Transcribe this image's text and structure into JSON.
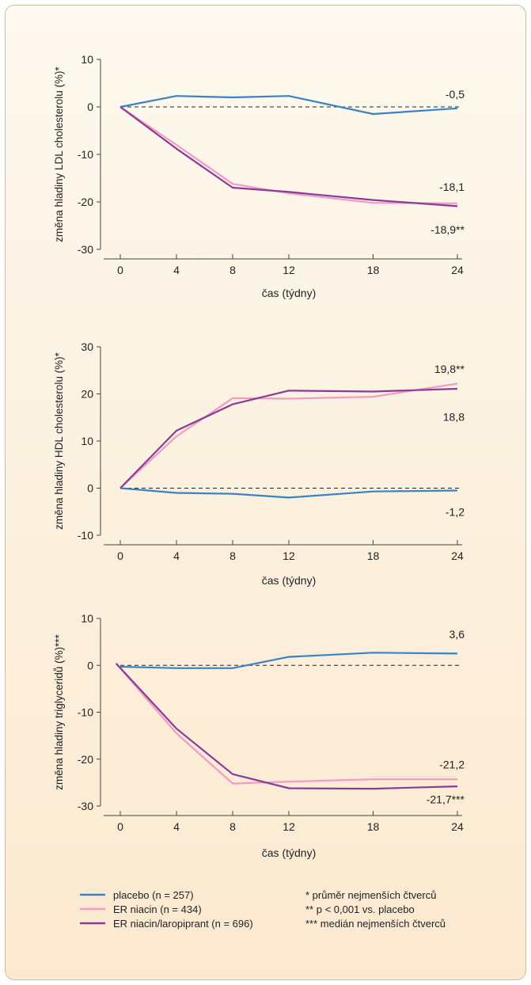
{
  "chart_data": [
    {
      "type": "line",
      "ylabel": "změna hladiny LDL cholesterolu (%)*",
      "xlabel": "čas (týdny)",
      "ylim": [
        -30,
        10
      ],
      "yticks": [
        10,
        0,
        -10,
        -20,
        -30
      ],
      "xticks": [
        0,
        4,
        8,
        12,
        18,
        24
      ],
      "xlim": [
        0,
        24
      ],
      "reference_line": 0,
      "series": [
        {
          "key": "placebo",
          "x": [
            0,
            4,
            8,
            12,
            18,
            24
          ],
          "y": [
            0,
            2.3,
            2.0,
            2.3,
            -1.5,
            -0.3
          ]
        },
        {
          "key": "er_niacin",
          "x": [
            0,
            4,
            8,
            12,
            18,
            24
          ],
          "y": [
            0,
            -8.0,
            -16.2,
            -18.2,
            -20.2,
            -20.3
          ]
        },
        {
          "key": "niacin_laropiprant",
          "x": [
            0,
            4,
            8,
            12,
            18,
            24
          ],
          "y": [
            0,
            -8.8,
            -17.0,
            -17.9,
            -19.6,
            -20.9
          ]
        }
      ],
      "end_labels": [
        {
          "text": "-0,5",
          "y": 2.7
        },
        {
          "text": "-18,1",
          "y": -16.8
        },
        {
          "text": "-18,9**",
          "y": -25.8
        }
      ]
    },
    {
      "type": "line",
      "ylabel": "změna hladiny HDL cholesterolu (%)*",
      "xlabel": "čas (týdny)",
      "ylim": [
        -10,
        30
      ],
      "yticks": [
        30,
        20,
        10,
        0,
        -10
      ],
      "xticks": [
        0,
        4,
        8,
        12,
        18,
        24
      ],
      "xlim": [
        0,
        24
      ],
      "reference_line": 0,
      "series": [
        {
          "key": "placebo",
          "x": [
            0,
            4,
            8,
            12,
            18,
            24
          ],
          "y": [
            0,
            -1.0,
            -1.2,
            -2.0,
            -0.7,
            -0.5
          ]
        },
        {
          "key": "er_niacin",
          "x": [
            0,
            4,
            8,
            12,
            18,
            24
          ],
          "y": [
            0,
            11.0,
            19.1,
            19.0,
            19.4,
            22.2
          ]
        },
        {
          "key": "niacin_laropiprant",
          "x": [
            0,
            4,
            8,
            12,
            18,
            24
          ],
          "y": [
            0,
            12.2,
            17.8,
            20.7,
            20.5,
            21.1
          ]
        }
      ],
      "end_labels": [
        {
          "text": "19,8**",
          "y": 25.3
        },
        {
          "text": "18,8",
          "y": 15.1
        },
        {
          "text": "-1,2",
          "y": -5.0
        }
      ]
    },
    {
      "type": "line",
      "ylabel": "změna hladiny triglyceridů (%)***",
      "xlabel": "čas (týdny)",
      "ylim": [
        -30,
        10
      ],
      "yticks": [
        10,
        0,
        -10,
        -20,
        -30
      ],
      "xticks": [
        0,
        4,
        8,
        12,
        18,
        24
      ],
      "xlim": [
        0,
        24
      ],
      "reference_line": 0,
      "series": [
        {
          "key": "placebo",
          "x": [
            0,
            4,
            8,
            12,
            18,
            24
          ],
          "y": [
            -0.3,
            -0.6,
            -0.6,
            1.8,
            2.7,
            2.5
          ]
        },
        {
          "key": "er_niacin",
          "x": [
            -0.3,
            4,
            8,
            12,
            18,
            24
          ],
          "y": [
            0.4,
            -14.5,
            -25.2,
            -24.8,
            -24.3,
            -24.3
          ]
        },
        {
          "key": "niacin_laropiprant",
          "x": [
            -0.3,
            4,
            8,
            12,
            18,
            24
          ],
          "y": [
            0.4,
            -13.5,
            -23.2,
            -26.2,
            -26.3,
            -25.8
          ]
        }
      ],
      "end_labels": [
        {
          "text": "3,6",
          "y": 6.6
        },
        {
          "text": "-21,2",
          "y": -21.1
        },
        {
          "text": "-21,7***",
          "y": -28.6
        }
      ]
    }
  ],
  "series_styles": {
    "placebo": {
      "color": "#3b82c4"
    },
    "er_niacin": {
      "color": "#f39ac4"
    },
    "niacin_laropiprant": {
      "color": "#8a3a99"
    }
  },
  "legend": {
    "items": [
      {
        "key": "placebo",
        "label": "placebo (n = 257)"
      },
      {
        "key": "er_niacin",
        "label": "ER niacin (n = 434)"
      },
      {
        "key": "niacin_laropiprant",
        "label": "ER niacin/laropiprant (n = 696)"
      }
    ],
    "notes": [
      "* průměr nejmenších čtverců",
      "** p < 0,001 vs. placebo",
      "*** medián nejmenších čtverců"
    ]
  }
}
